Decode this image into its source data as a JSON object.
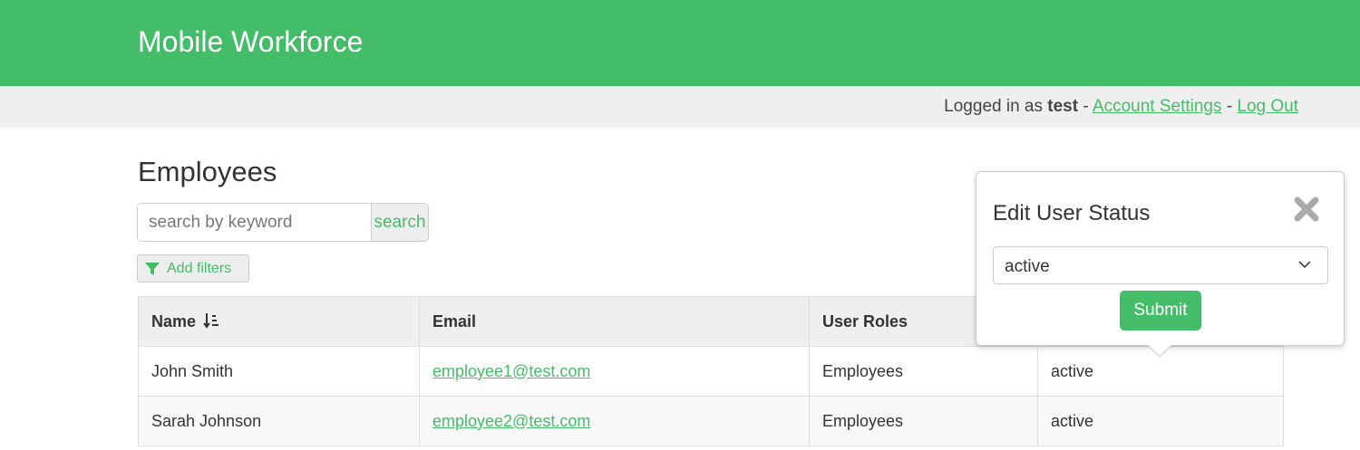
{
  "header": {
    "title": "Mobile Workforce",
    "accent": "#44bd68"
  },
  "userbar": {
    "prefix": "Logged in as ",
    "username": "test",
    "sep1": " - ",
    "account_settings": "Account Settings",
    "sep2": " - ",
    "logout": "Log Out"
  },
  "page": {
    "title": "Employees"
  },
  "search": {
    "placeholder": "search by keyword",
    "button": "search"
  },
  "filters": {
    "label": "Add filters",
    "icon": "filter-icon"
  },
  "table": {
    "columns": [
      "Name",
      "Email",
      "User Roles"
    ],
    "sort_icon": "sort-alpha-down-icon",
    "rows": [
      {
        "name": "John Smith",
        "email": "employee1@test.com",
        "roles": "Employees",
        "status": "active"
      },
      {
        "name": "Sarah Johnson",
        "email": "employee2@test.com",
        "roles": "Employees",
        "status": "active"
      }
    ]
  },
  "popover": {
    "title": "Edit User Status",
    "selected": "active",
    "submit": "Submit",
    "close_icon": "close-icon"
  }
}
